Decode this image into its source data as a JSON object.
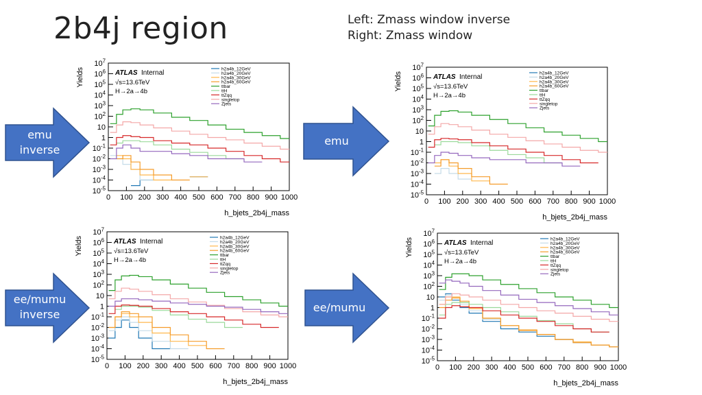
{
  "slide": {
    "title": "2b4j region",
    "note_lines": [
      "Left: Zmass window inverse",
      "Right: Zmass window"
    ]
  },
  "arrows": [
    {
      "lines": [
        "emu",
        "inverse"
      ]
    },
    {
      "lines": [
        "emu"
      ]
    },
    {
      "lines": [
        "ee/mumu",
        "inverse"
      ]
    },
    {
      "lines": [
        "ee/mumu"
      ]
    }
  ],
  "colors": {
    "arrow_fill": "#4472C4",
    "arrow_edge": "#2F528F",
    "h2a4b_12GeV": "#1f77b4",
    "h2a4b_20GeV": "#c5dbe8",
    "h2a4b_30GeV": "#ffb74d",
    "h2a4b_60GeV": "#f59c2a",
    "ttbar": "#2ca02c",
    "ttH": "#9ad99a",
    "ttZqq": "#d62728",
    "singletop": "#f4a7a7",
    "Zjets": "#9467bd"
  },
  "chart_data": [
    {
      "id": "emu-inverse",
      "type": "line",
      "step": true,
      "xlabel": "h_bjets_2b4j_mass",
      "ylabel": "Yields",
      "xlim": [
        0,
        1000
      ],
      "ylim": [
        1e-05,
        10000000.0
      ],
      "log_y": true,
      "x_ticks": [
        "0",
        "100",
        "200",
        "300",
        "400",
        "500",
        "600",
        "700",
        "800",
        "900",
        "1000"
      ],
      "y_ticks": [
        "10-5",
        "10-4",
        "10-3",
        "10-2",
        "10-1",
        "1",
        "10",
        "102",
        "103",
        "104",
        "105",
        "106",
        "107"
      ],
      "atlas_label": "ATLAS",
      "atlas_sub": "Internal",
      "annotations": [
        "√s=13.6TeV",
        "H→2a→4b"
      ],
      "legend_position": "top-center",
      "x": [
        30,
        60,
        100,
        150,
        200,
        300,
        400,
        500,
        600,
        700,
        800,
        900,
        1000
      ],
      "series": [
        {
          "name": "h2a4b_12GeV",
          "values": [
            null,
            null,
            null,
            3e-05,
            0.0001,
            null,
            null,
            0.0002,
            null,
            null,
            null,
            null,
            null
          ]
        },
        {
          "name": "h2a4b_20GeV",
          "values": [
            0.02,
            0.01,
            0.003,
            0.001,
            0.0001,
            null,
            null,
            null,
            null,
            null,
            null,
            null,
            null
          ]
        },
        {
          "name": "h2a4b_30GeV",
          "values": [
            null,
            0.02,
            0.01,
            0.001,
            0.0003,
            0.0001,
            null,
            0.0002,
            null,
            null,
            null,
            null,
            null
          ]
        },
        {
          "name": "h2a4b_60GeV",
          "values": [
            null,
            0.01,
            0.02,
            0.005,
            0.001,
            0.0003,
            0.0001,
            null,
            null,
            null,
            null,
            null,
            null
          ]
        },
        {
          "name": "ttbar",
          "values": [
            20,
            150,
            400,
            500,
            400,
            200,
            80,
            40,
            15,
            6,
            3,
            1.5,
            0.8
          ]
        },
        {
          "name": "ttH",
          "values": [
            null,
            0.3,
            0.5,
            0.5,
            0.4,
            0.2,
            0.08,
            0.04,
            0.02,
            0.01,
            null,
            null,
            null
          ]
        },
        {
          "name": "ttZqq",
          "values": [
            0.2,
            1,
            1.5,
            1.2,
            1,
            0.5,
            0.3,
            0.2,
            0.1,
            0.05,
            0.02,
            0.01,
            0.005
          ]
        },
        {
          "name": "singletop",
          "values": [
            3,
            15,
            30,
            25,
            15,
            8,
            4,
            2,
            1,
            0.6,
            0.3,
            0.15,
            0.08
          ]
        },
        {
          "name": "Zjets",
          "values": [
            0.01,
            0.1,
            0.2,
            0.1,
            0.05,
            0.05,
            0.03,
            0.02,
            0.01,
            0.01,
            0.005,
            null,
            null
          ]
        }
      ]
    },
    {
      "id": "emu",
      "type": "line",
      "step": true,
      "xlabel": "h_bjets_2b4j_mass",
      "ylabel": "Yields",
      "xlim": [
        0,
        1000
      ],
      "ylim": [
        1e-05,
        10000000.0
      ],
      "log_y": true,
      "x_ticks": [
        "0",
        "100",
        "200",
        "300",
        "400",
        "500",
        "600",
        "700",
        "800",
        "900",
        "1000"
      ],
      "y_ticks": [
        "10-5",
        "10-4",
        "10-3",
        "10-2",
        "10-1",
        "1",
        "10",
        "102",
        "103",
        "104",
        "105",
        "106",
        "107"
      ],
      "atlas_label": "ATLAS",
      "atlas_sub": "Internal",
      "annotations": [
        "√s=13.6TeV",
        "H→2a→4b"
      ],
      "legend_position": "top-center",
      "x": [
        30,
        60,
        100,
        150,
        200,
        300,
        400,
        500,
        600,
        700,
        800,
        900,
        1000
      ],
      "series": [
        {
          "name": "h2a4b_12GeV",
          "values": [
            null,
            null,
            null,
            null,
            null,
            null,
            null,
            null,
            null,
            null,
            null,
            null,
            null
          ]
        },
        {
          "name": "h2a4b_20GeV",
          "values": [
            null,
            0.001,
            0.003,
            0.001,
            0.0003,
            null,
            null,
            null,
            null,
            null,
            null,
            null,
            null
          ]
        },
        {
          "name": "h2a4b_30GeV",
          "values": [
            null,
            0.01,
            0.02,
            0.005,
            0.001,
            0.0002,
            null,
            null,
            null,
            null,
            null,
            null,
            null
          ]
        },
        {
          "name": "h2a4b_60GeV",
          "values": [
            null,
            0.005,
            0.02,
            0.01,
            0.003,
            0.0005,
            0.0001,
            null,
            null,
            null,
            null,
            null,
            null
          ]
        },
        {
          "name": "ttbar",
          "values": [
            30,
            300,
            700,
            800,
            600,
            300,
            120,
            50,
            20,
            8,
            4,
            2,
            1
          ]
        },
        {
          "name": "ttH",
          "values": [
            null,
            0.5,
            1,
            1,
            0.8,
            0.4,
            0.15,
            0.06,
            0.03,
            0.01,
            null,
            null,
            null
          ]
        },
        {
          "name": "ttZqq",
          "values": [
            0.3,
            1.5,
            2,
            1.8,
            1.5,
            0.8,
            0.4,
            0.2,
            0.1,
            0.05,
            0.02,
            0.01,
            null
          ]
        },
        {
          "name": "singletop",
          "values": [
            5,
            25,
            50,
            40,
            25,
            12,
            5,
            2.5,
            1.2,
            0.6,
            0.3,
            0.15,
            0.1
          ]
        },
        {
          "name": "Zjets",
          "values": [
            0.01,
            0.05,
            0.1,
            0.08,
            0.05,
            0.03,
            0.02,
            0.02,
            0.01,
            0.01,
            0.005,
            null,
            null
          ]
        }
      ]
    },
    {
      "id": "eemumu-inverse",
      "type": "line",
      "step": true,
      "xlabel": "h_bjets_2b4j_mass",
      "ylabel": "Yields",
      "xlim": [
        0,
        1000
      ],
      "ylim": [
        1e-05,
        10000000.0
      ],
      "log_y": true,
      "x_ticks": [
        "0",
        "100",
        "200",
        "300",
        "400",
        "500",
        "600",
        "700",
        "800",
        "900",
        "1000"
      ],
      "y_ticks": [
        "10-5",
        "10-4",
        "10-3",
        "10-2",
        "10-1",
        "1",
        "10",
        "102",
        "103",
        "104",
        "105",
        "106",
        "107"
      ],
      "atlas_label": "ATLAS",
      "atlas_sub": "Internal",
      "annotations": [
        "√s=13.6TeV",
        "H→2a→4b"
      ],
      "legend_position": "top-center",
      "x": [
        30,
        60,
        100,
        150,
        200,
        300,
        400,
        500,
        600,
        700,
        800,
        900,
        1000
      ],
      "series": [
        {
          "name": "h2a4b_12GeV",
          "values": [
            0.001,
            0.01,
            0.05,
            0.01,
            0.001,
            0.0001,
            null,
            null,
            null,
            null,
            null,
            null,
            null
          ]
        },
        {
          "name": "h2a4b_20GeV",
          "values": [
            0.005,
            0.05,
            0.1,
            0.03,
            0.005,
            0.0005,
            0.0001,
            null,
            null,
            null,
            null,
            null,
            null
          ]
        },
        {
          "name": "h2a4b_30GeV",
          "values": [
            0.01,
            0.1,
            0.2,
            0.1,
            0.03,
            0.003,
            0.0005,
            0.0002,
            null,
            null,
            null,
            null,
            null
          ]
        },
        {
          "name": "h2a4b_60GeV",
          "values": [
            0.01,
            0.1,
            0.3,
            0.2,
            0.1,
            0.01,
            0.002,
            0.0005,
            0.0001,
            null,
            null,
            null,
            null
          ]
        },
        {
          "name": "ttbar",
          "values": [
            30,
            300,
            700,
            800,
            600,
            300,
            120,
            50,
            20,
            8,
            4,
            2,
            1
          ]
        },
        {
          "name": "ttH",
          "values": [
            null,
            0.5,
            1,
            1,
            0.8,
            0.4,
            0.15,
            0.06,
            0.03,
            0.01,
            null,
            null,
            null
          ]
        },
        {
          "name": "ttZqq",
          "values": [
            0.2,
            1,
            1.3,
            1.2,
            1,
            0.6,
            0.3,
            0.2,
            0.1,
            0.05,
            0.02,
            0.01,
            null
          ]
        },
        {
          "name": "singletop",
          "values": [
            5,
            25,
            50,
            40,
            25,
            12,
            5,
            2.5,
            1.2,
            0.6,
            0.3,
            0.15,
            0.1
          ]
        },
        {
          "name": "Zjets",
          "values": [
            1,
            3,
            5,
            5,
            4,
            3,
            2,
            1.5,
            1,
            0.8,
            0.5,
            0.3,
            0.2
          ]
        }
      ]
    },
    {
      "id": "eemumu",
      "type": "line",
      "step": true,
      "xlabel": "h_bjets_2b4j_mass",
      "ylabel": "Yields",
      "xlim": [
        0,
        1000
      ],
      "ylim": [
        1e-05,
        10000000.0
      ],
      "log_y": true,
      "x_ticks": [
        "0",
        "100",
        "200",
        "300",
        "400",
        "500",
        "600",
        "700",
        "800",
        "900",
        "1000"
      ],
      "y_ticks": [
        "10-5",
        "10-4",
        "10-3",
        "10-2",
        "10-1",
        "1",
        "10",
        "102",
        "103",
        "104",
        "105",
        "106",
        "107"
      ],
      "atlas_label": "ATLAS",
      "atlas_sub": "Internal",
      "annotations": [
        "√s=13.6TeV",
        "H→2a→4b"
      ],
      "legend_position": "top-center",
      "x": [
        30,
        60,
        100,
        150,
        200,
        300,
        400,
        500,
        600,
        700,
        800,
        900,
        1000
      ],
      "series": [
        {
          "name": "h2a4b_12GeV",
          "values": [
            10,
            20,
            5,
            1,
            0.3,
            0.05,
            0.01,
            0.005,
            0.002,
            0.001,
            0.0005,
            0.0003,
            0.0002
          ]
        },
        {
          "name": "h2a4b_20GeV",
          "values": [
            5,
            15,
            8,
            2,
            0.5,
            0.08,
            0.02,
            0.008,
            0.003,
            0.001,
            0.0005,
            0.0003,
            0.0002
          ]
        },
        {
          "name": "h2a4b_30GeV",
          "values": [
            2,
            10,
            10,
            3,
            0.8,
            0.1,
            0.02,
            0.008,
            0.003,
            0.001,
            0.0006,
            0.0003,
            0.0002
          ]
        },
        {
          "name": "h2a4b_60GeV",
          "values": [
            1,
            5,
            8,
            4,
            1,
            0.1,
            0.02,
            0.007,
            0.003,
            0.001,
            0.0005,
            0.0003,
            0.0002
          ]
        },
        {
          "name": "ttbar",
          "values": [
            50,
            700,
            1500,
            1500,
            1000,
            400,
            150,
            60,
            25,
            10,
            5,
            2,
            1
          ]
        },
        {
          "name": "ttH",
          "values": [
            0.2,
            2,
            3,
            3,
            2,
            1,
            0.4,
            0.15,
            0.06,
            0.03,
            0.01,
            0.005,
            null
          ]
        },
        {
          "name": "ttZqq",
          "values": [
            0.1,
            1,
            1.5,
            1.2,
            1,
            0.5,
            0.2,
            0.1,
            0.05,
            0.02,
            0.01,
            0.005,
            null
          ]
        },
        {
          "name": "singletop",
          "values": [
            2,
            10,
            20,
            15,
            10,
            5,
            2,
            1,
            0.5,
            0.3,
            0.15,
            0.08,
            0.05
          ]
        },
        {
          "name": "Zjets",
          "values": [
            200,
            400,
            300,
            200,
            100,
            40,
            15,
            6,
            3,
            1.5,
            0.8,
            0.4,
            0.2
          ]
        }
      ]
    }
  ]
}
